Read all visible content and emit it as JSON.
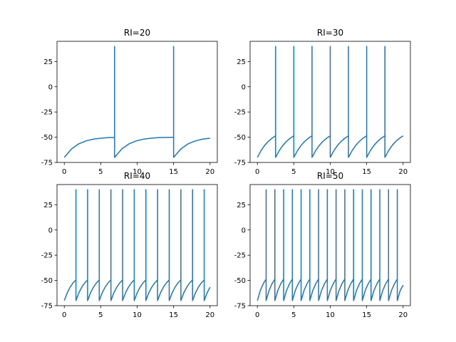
{
  "chart_data": [
    {
      "type": "line",
      "title": "RI=20",
      "xlabel": "",
      "ylabel": "",
      "xlim": [
        -1,
        21
      ],
      "ylim": [
        -75,
        45
      ],
      "xticks": [
        0,
        5,
        10,
        15,
        20
      ],
      "yticks": [
        -75,
        -50,
        -25,
        0,
        25
      ],
      "grid": false,
      "series": [
        {
          "color": "#1f77b4",
          "x": [
            0,
            1,
            2,
            3,
            4,
            5,
            6,
            6.9,
            6.9,
            6.9,
            7.9,
            8.9,
            9.9,
            10.9,
            11.9,
            12.9,
            13.9,
            14.9,
            15.0,
            15.0,
            15.0,
            16.0,
            17.0,
            18.0,
            19.0,
            20.0
          ],
          "y": [
            -70,
            -61.6,
            -56.5,
            -53.6,
            -51.9,
            -51.0,
            -50.4,
            -50.2,
            40,
            -70,
            -61.6,
            -56.5,
            -53.6,
            -51.9,
            -51.0,
            -50.4,
            -50.2,
            -50.1,
            -50.1,
            40,
            -70,
            -61.6,
            -56.5,
            -53.6,
            -51.9,
            -51.0
          ]
        }
      ]
    },
    {
      "type": "line",
      "title": "RI=30",
      "xlabel": "",
      "ylabel": "",
      "xlim": [
        -1,
        21
      ],
      "ylim": [
        -75,
        45
      ],
      "xticks": [
        0,
        5,
        10,
        15,
        20
      ],
      "yticks": [
        -75,
        -50,
        -25,
        0,
        25
      ],
      "grid": false,
      "series": [
        {
          "color": "#1f77b4",
          "x": [
            0,
            0.5,
            1.0,
            1.5,
            2.0,
            2.5,
            2.5,
            2.5,
            3.0,
            3.5,
            4.0,
            4.5,
            5.0,
            5.0,
            5.0,
            5.5,
            6.0,
            6.5,
            7.0,
            7.5,
            7.5,
            7.5,
            8.0,
            8.5,
            9.0,
            9.5,
            10.0,
            10.0,
            10.0,
            10.5,
            11.0,
            11.5,
            12.0,
            12.5,
            12.5,
            12.5,
            13.0,
            13.5,
            14.0,
            14.5,
            15.0,
            15.0,
            15.0,
            15.5,
            16.0,
            16.5,
            17.0,
            17.5,
            17.5,
            17.5,
            18.0,
            18.5,
            19.0,
            19.5,
            20.0
          ],
          "y": [
            -70,
            -63.3,
            -58.1,
            -54.1,
            -51.0,
            -48.6,
            40,
            -70,
            -63.3,
            -58.1,
            -54.1,
            -51.0,
            -48.6,
            40,
            -70,
            -63.3,
            -58.1,
            -54.1,
            -51.0,
            -48.6,
            40,
            -70,
            -63.3,
            -58.1,
            -54.1,
            -51.0,
            -48.6,
            40,
            -70,
            -63.3,
            -58.1,
            -54.1,
            -51.0,
            -48.6,
            40,
            -70,
            -63.3,
            -58.1,
            -54.1,
            -51.0,
            -48.6,
            40,
            -70,
            -63.3,
            -58.1,
            -54.1,
            -51.0,
            -48.6,
            40,
            -70,
            -63.3,
            -58.1,
            -54.1,
            -51.0,
            -48.6
          ]
        }
      ]
    },
    {
      "type": "line",
      "title": "RI=40",
      "xlabel": "",
      "ylabel": "",
      "xlim": [
        -1,
        21
      ],
      "ylim": [
        -75,
        45
      ],
      "xticks": [
        0,
        5,
        10,
        15,
        20
      ],
      "yticks": [
        -75,
        -50,
        -25,
        0,
        25
      ],
      "grid": false,
      "series": [
        {
          "color": "#1f77b4",
          "x": [
            0,
            0.4,
            0.8,
            1.2,
            1.6,
            1.6,
            1.6,
            2.0,
            2.4,
            2.8,
            3.2,
            3.2,
            3.2,
            3.6,
            4.0,
            4.4,
            4.8,
            4.8,
            4.8,
            5.2,
            5.6,
            6.0,
            6.4,
            6.4,
            6.4,
            6.8,
            7.2,
            7.6,
            8.0,
            8.0,
            8.0,
            8.4,
            8.8,
            9.2,
            9.6,
            9.6,
            9.6,
            10.0,
            10.4,
            10.8,
            11.2,
            11.2,
            11.2,
            11.6,
            12.0,
            12.4,
            12.8,
            12.8,
            12.8,
            13.2,
            13.6,
            14.0,
            14.4,
            14.4,
            14.4,
            14.8,
            15.2,
            15.6,
            16.0,
            16.0,
            16.0,
            16.4,
            16.8,
            17.2,
            17.6,
            17.6,
            17.6,
            18.0,
            18.4,
            18.8,
            19.2,
            19.2,
            19.2,
            19.6,
            20.0
          ],
          "y": [
            -70,
            -62.3,
            -56.7,
            -52.5,
            -49.5,
            40,
            -70,
            -62.3,
            -56.7,
            -52.5,
            -49.5,
            40,
            -70,
            -62.3,
            -56.7,
            -52.5,
            -49.5,
            40,
            -70,
            -62.3,
            -56.7,
            -52.5,
            -49.5,
            40,
            -70,
            -62.3,
            -56.7,
            -52.5,
            -49.5,
            40,
            -70,
            -62.3,
            -56.7,
            -52.5,
            -49.5,
            40,
            -70,
            -62.3,
            -56.7,
            -52.5,
            -49.5,
            40,
            -70,
            -62.3,
            -56.7,
            -52.5,
            -49.5,
            40,
            -70,
            -62.3,
            -56.7,
            -52.5,
            -49.5,
            40,
            -70,
            -62.3,
            -56.7,
            -52.5,
            -49.5,
            40,
            -70,
            -62.3,
            -56.7,
            -52.5,
            -49.5,
            40,
            -70,
            -62.3,
            -56.7,
            -52.5,
            -49.5,
            40,
            -70,
            -62.3,
            -56.7
          ]
        }
      ]
    },
    {
      "type": "line",
      "title": "RI=50",
      "xlabel": "",
      "ylabel": "",
      "xlim": [
        -1,
        21
      ],
      "ylim": [
        -75,
        45
      ],
      "xticks": [
        0,
        5,
        10,
        15,
        20
      ],
      "yticks": [
        -75,
        -50,
        -25,
        0,
        25
      ],
      "grid": false,
      "series": [
        {
          "color": "#1f77b4",
          "x": [
            0,
            0.4,
            0.8,
            1.2,
            1.2,
            1.2,
            1.6,
            2.0,
            2.4,
            2.4,
            2.4,
            2.8,
            3.2,
            3.6,
            3.6,
            3.6,
            4.0,
            4.4,
            4.8,
            4.8,
            4.8,
            5.2,
            5.6,
            6.0,
            6.0,
            6.0,
            6.4,
            6.8,
            7.2,
            7.2,
            7.2,
            7.6,
            8.0,
            8.4,
            8.4,
            8.4,
            8.8,
            9.2,
            9.6,
            9.6,
            9.6,
            10.0,
            10.4,
            10.8,
            10.8,
            10.8,
            11.2,
            11.6,
            12.0,
            12.0,
            12.0,
            12.4,
            12.8,
            13.2,
            13.2,
            13.2,
            13.6,
            14.0,
            14.4,
            14.4,
            14.4,
            14.8,
            15.2,
            15.6,
            15.6,
            15.6,
            16.0,
            16.4,
            16.8,
            16.8,
            16.8,
            17.2,
            17.6,
            18.0,
            18.0,
            18.0,
            18.4,
            18.8,
            19.2,
            19.2,
            19.2,
            19.6,
            20.0
          ],
          "y": [
            -70,
            -60.0,
            -53.4,
            -48.6,
            40,
            -70,
            -60.0,
            -53.4,
            -48.6,
            40,
            -70,
            -60.0,
            -53.4,
            -48.6,
            40,
            -70,
            -60.0,
            -53.4,
            -48.6,
            40,
            -70,
            -60.0,
            -53.4,
            -48.6,
            40,
            -70,
            -60.0,
            -53.4,
            -48.6,
            40,
            -70,
            -60.0,
            -53.4,
            -48.6,
            40,
            -70,
            -60.0,
            -53.4,
            -48.6,
            40,
            -70,
            -60.0,
            -53.4,
            -48.6,
            40,
            -70,
            -60.0,
            -53.4,
            -48.6,
            40,
            -70,
            -60.0,
            -53.4,
            -48.6,
            40,
            -70,
            -60.0,
            -53.4,
            -48.6,
            40,
            -70,
            -60.0,
            -53.4,
            -48.6,
            40,
            -70,
            -60.0,
            -53.4,
            -48.6,
            40,
            -70,
            -60.0,
            -53.4,
            -48.6,
            40,
            -70,
            -60.0,
            -53.4,
            -48.6,
            40,
            -70,
            -60.0,
            -54.6
          ]
        }
      ]
    }
  ]
}
